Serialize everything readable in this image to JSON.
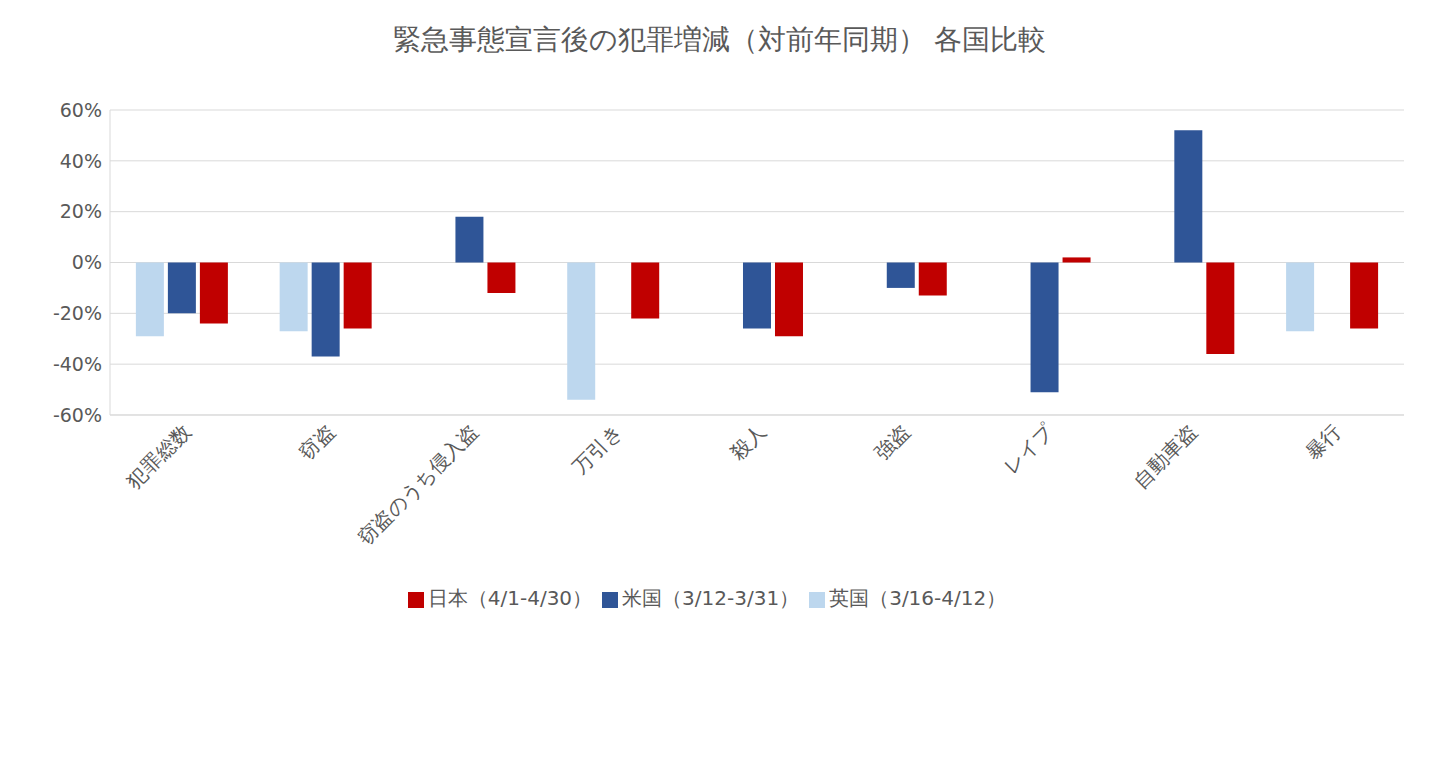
{
  "chart_data": {
    "type": "bar",
    "title": "緊急事態宣言後の犯罪増減（対前年同期） 各国比較",
    "categories": [
      "犯罪総数",
      "窃盗",
      "窃盗のうち侵入盗",
      "万引き",
      "殺人",
      "強盗",
      "レイプ",
      "自動車盗",
      "暴行"
    ],
    "series": [
      {
        "name": "英国（3/16-4/12）",
        "color": "#bdd7ee",
        "values": [
          -29,
          -27,
          null,
          -54,
          null,
          null,
          null,
          null,
          -27
        ]
      },
      {
        "name": "米国（3/12-3/31）",
        "color": "#2f5597",
        "values": [
          -20,
          -37,
          18,
          null,
          -26,
          -10,
          -51,
          52,
          null
        ]
      },
      {
        "name": "日本（4/1-4/30）",
        "color": "#c00000",
        "values": [
          -24,
          -26,
          -12,
          -22,
          -29,
          -13,
          2,
          -36,
          -26
        ]
      }
    ],
    "ylim": [
      -60,
      60
    ],
    "yticks": [
      {
        "value": -60,
        "label": "-60%"
      },
      {
        "value": -40,
        "label": "-40%"
      },
      {
        "value": -20,
        "label": "-20%"
      },
      {
        "value": 0,
        "label": "0%"
      },
      {
        "value": 20,
        "label": "20%"
      },
      {
        "value": 40,
        "label": "40%"
      },
      {
        "value": 60,
        "label": "60%"
      }
    ],
    "grid": true,
    "legend": "bottom"
  }
}
